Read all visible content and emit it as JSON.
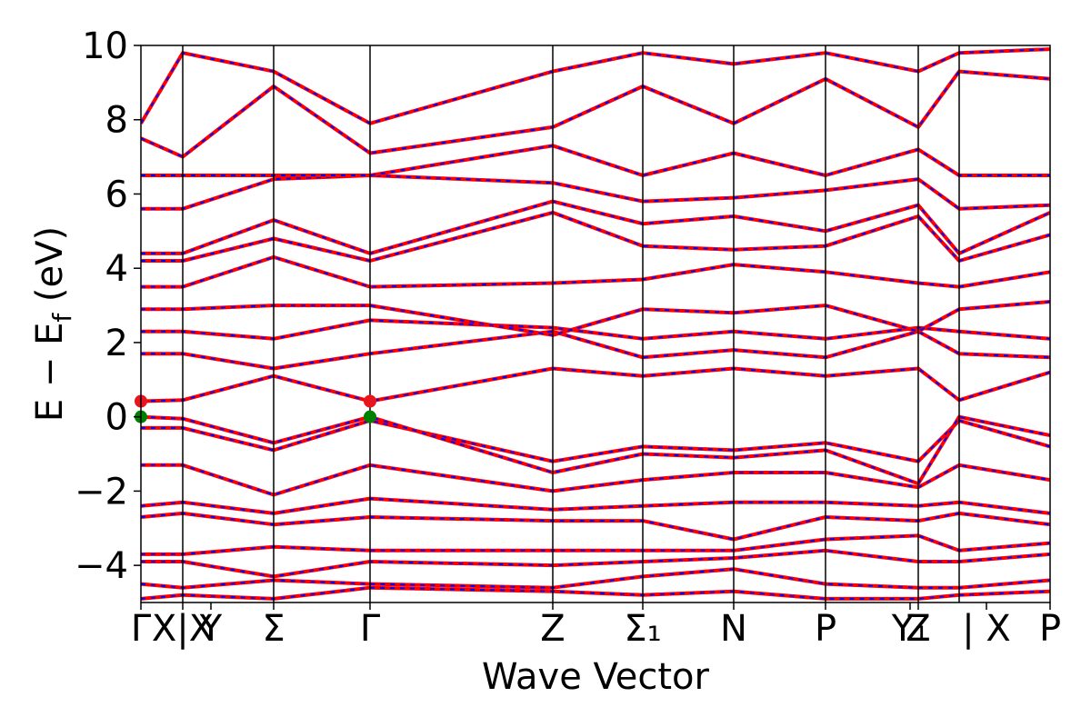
{
  "chart_data": {
    "type": "line",
    "title": "",
    "xlabel": "Wave Vector",
    "ylabel": "E − E_f (eV)",
    "ylabel_parts": {
      "main": "E − E",
      "sub": "f",
      "unit": " (eV)"
    },
    "ylim": [
      -5,
      10
    ],
    "yticks": [
      -4,
      -2,
      0,
      2,
      4,
      6,
      8,
      10
    ],
    "ytick_labels": [
      "−4",
      "−2",
      "0",
      "2",
      "4",
      "6",
      "8",
      "10"
    ],
    "xlim": [
      0,
      1
    ],
    "high_symmetry_points": [
      {
        "label": "Γ",
        "x": 0.0
      },
      {
        "label": "X|X",
        "x": 0.046
      },
      {
        "label": "Y",
        "x": 0.077
      },
      {
        "label": "Σ",
        "x": 0.146
      },
      {
        "label": "Γ",
        "x": 0.252
      },
      {
        "label": "Z",
        "x": 0.453
      },
      {
        "label": "Σ₁",
        "x": 0.552
      },
      {
        "label": "N",
        "x": 0.652
      },
      {
        "label": "P",
        "x": 0.753
      },
      {
        "label": "Y₁",
        "x": 0.846
      },
      {
        "label": "Z",
        "x": 0.855
      },
      {
        "label": "| X",
        "x": 0.93
      },
      {
        "label": "P",
        "x": 1.0
      }
    ],
    "vertical_lines_x": [
      0.046,
      0.146,
      0.252,
      0.453,
      0.552,
      0.652,
      0.753,
      0.855,
      0.9
    ],
    "series_style": {
      "primary_color": "#ff0000",
      "overlay_color": "#0000ff",
      "overlay_dash": "dashed"
    },
    "markers": [
      {
        "x": 0.0,
        "y": 0.0,
        "color": "#008000"
      },
      {
        "x": 0.0,
        "y": 0.42,
        "color": "#e8141e"
      },
      {
        "x": 0.252,
        "y": 0.0,
        "color": "#008000"
      },
      {
        "x": 0.252,
        "y": 0.42,
        "color": "#e8141e"
      }
    ],
    "bands": [
      {
        "x": [
          0,
          0.046,
          0.146,
          0.252,
          0.453,
          0.552,
          0.652,
          0.753,
          0.855,
          0.9,
          1.0
        ],
        "y": [
          -4.9,
          -4.8,
          -4.9,
          -4.6,
          -4.7,
          -4.8,
          -4.7,
          -4.9,
          -4.9,
          -4.8,
          -4.7
        ]
      },
      {
        "x": [
          0,
          0.046,
          0.146,
          0.252,
          0.453,
          0.552,
          0.652,
          0.753,
          0.855,
          0.9,
          1.0
        ],
        "y": [
          -4.5,
          -4.6,
          -4.4,
          -4.5,
          -4.6,
          -4.3,
          -4.1,
          -4.5,
          -4.6,
          -4.6,
          -4.4
        ]
      },
      {
        "x": [
          0,
          0.046,
          0.146,
          0.252,
          0.453,
          0.552,
          0.652,
          0.753,
          0.855,
          0.9,
          1.0
        ],
        "y": [
          -3.9,
          -3.9,
          -4.3,
          -3.9,
          -4.0,
          -3.9,
          -3.8,
          -3.6,
          -3.9,
          -3.9,
          -3.7
        ]
      },
      {
        "x": [
          0,
          0.046,
          0.146,
          0.252,
          0.453,
          0.552,
          0.652,
          0.753,
          0.855,
          0.9,
          1.0
        ],
        "y": [
          -3.7,
          -3.7,
          -3.5,
          -3.6,
          -3.6,
          -3.6,
          -3.6,
          -3.3,
          -3.2,
          -3.6,
          -3.4
        ]
      },
      {
        "x": [
          0,
          0.046,
          0.146,
          0.252,
          0.453,
          0.552,
          0.652,
          0.753,
          0.855,
          0.9,
          1.0
        ],
        "y": [
          -2.7,
          -2.6,
          -2.9,
          -2.7,
          -2.8,
          -2.8,
          -3.3,
          -2.7,
          -2.8,
          -2.6,
          -2.9
        ]
      },
      {
        "x": [
          0,
          0.046,
          0.146,
          0.252,
          0.453,
          0.552,
          0.652,
          0.753,
          0.855,
          0.9,
          1.0
        ],
        "y": [
          -2.4,
          -2.3,
          -2.6,
          -2.2,
          -2.5,
          -2.4,
          -2.3,
          -2.3,
          -2.4,
          -2.3,
          -2.6
        ]
      },
      {
        "x": [
          0,
          0.046,
          0.146,
          0.252,
          0.453,
          0.552,
          0.652,
          0.753,
          0.855,
          0.9,
          1.0
        ],
        "y": [
          -1.3,
          -1.3,
          -2.1,
          -1.3,
          -2.0,
          -1.7,
          -1.5,
          -1.5,
          -1.9,
          -1.3,
          -1.7
        ]
      },
      {
        "x": [
          0,
          0.046,
          0.146,
          0.252,
          0.453,
          0.552,
          0.652,
          0.753,
          0.855,
          0.9,
          1.0
        ],
        "y": [
          -0.3,
          -0.3,
          -0.9,
          -0.1,
          -1.2,
          -0.8,
          -0.9,
          -0.7,
          -1.2,
          -0.1,
          -0.8
        ]
      },
      {
        "x": [
          0,
          0.046,
          0.146,
          0.252,
          0.453,
          0.552,
          0.652,
          0.753,
          0.855,
          0.9,
          1.0
        ],
        "y": [
          0.0,
          -0.05,
          -0.7,
          0.0,
          -1.5,
          -1.0,
          -1.1,
          -0.9,
          -1.8,
          0.0,
          -0.5
        ]
      },
      {
        "x": [
          0,
          0.046,
          0.146,
          0.252,
          0.453,
          0.552,
          0.652,
          0.753,
          0.855,
          0.9,
          1.0
        ],
        "y": [
          0.42,
          0.45,
          1.1,
          0.42,
          1.3,
          1.1,
          1.3,
          1.1,
          1.3,
          0.45,
          1.2
        ]
      },
      {
        "x": [
          0,
          0.046,
          0.146,
          0.252,
          0.453,
          0.552,
          0.652,
          0.753,
          0.855,
          0.9,
          1.0
        ],
        "y": [
          1.7,
          1.7,
          1.3,
          1.7,
          2.3,
          1.6,
          1.8,
          1.6,
          2.3,
          1.7,
          1.6
        ]
      },
      {
        "x": [
          0,
          0.046,
          0.146,
          0.252,
          0.453,
          0.552,
          0.652,
          0.753,
          0.855,
          0.9,
          1.0
        ],
        "y": [
          2.3,
          2.3,
          2.1,
          2.6,
          2.4,
          2.1,
          2.3,
          2.1,
          2.4,
          2.3,
          2.1
        ]
      },
      {
        "x": [
          0,
          0.046,
          0.146,
          0.252,
          0.453,
          0.552,
          0.652,
          0.753,
          0.855,
          0.9,
          1.0
        ],
        "y": [
          2.9,
          2.9,
          3.0,
          3.0,
          2.2,
          2.9,
          2.8,
          3.0,
          2.3,
          2.9,
          3.1
        ]
      },
      {
        "x": [
          0,
          0.046,
          0.146,
          0.252,
          0.453,
          0.552,
          0.652,
          0.753,
          0.855,
          0.9,
          1.0
        ],
        "y": [
          3.5,
          3.5,
          4.3,
          3.5,
          3.6,
          3.7,
          4.1,
          3.9,
          3.6,
          3.5,
          3.9
        ]
      },
      {
        "x": [
          0,
          0.046,
          0.146,
          0.252,
          0.453,
          0.552,
          0.652,
          0.753,
          0.855,
          0.9,
          1.0
        ],
        "y": [
          4.2,
          4.2,
          4.8,
          4.2,
          5.5,
          4.6,
          4.5,
          4.6,
          5.4,
          4.2,
          4.9
        ]
      },
      {
        "x": [
          0,
          0.046,
          0.146,
          0.252,
          0.453,
          0.552,
          0.652,
          0.753,
          0.855,
          0.9,
          1.0
        ],
        "y": [
          4.4,
          4.4,
          5.3,
          4.4,
          5.8,
          5.2,
          5.4,
          5.0,
          5.7,
          4.4,
          5.5
        ]
      },
      {
        "x": [
          0,
          0.046,
          0.146,
          0.252,
          0.453,
          0.552,
          0.652,
          0.753,
          0.855,
          0.9,
          1.0
        ],
        "y": [
          5.6,
          5.6,
          6.4,
          6.5,
          6.3,
          5.8,
          5.9,
          6.1,
          6.4,
          5.6,
          5.7
        ]
      },
      {
        "x": [
          0,
          0.046,
          0.146,
          0.252,
          0.453,
          0.552,
          0.652,
          0.753,
          0.855,
          0.9,
          1.0
        ],
        "y": [
          6.5,
          6.5,
          6.5,
          6.5,
          7.3,
          6.5,
          7.1,
          6.5,
          7.2,
          6.5,
          6.5
        ]
      },
      {
        "x": [
          0,
          0.046,
          0.146,
          0.252,
          0.453,
          0.552,
          0.652,
          0.753,
          0.855,
          0.9,
          1.0
        ],
        "y": [
          7.5,
          7.0,
          8.9,
          7.1,
          7.8,
          8.9,
          7.9,
          9.1,
          7.8,
          9.3,
          9.1
        ]
      },
      {
        "x": [
          0,
          0.046,
          0.146,
          0.252,
          0.453,
          0.552,
          0.652,
          0.753,
          0.855,
          0.9,
          1.0
        ],
        "y": [
          7.9,
          9.8,
          9.3,
          7.9,
          9.3,
          9.8,
          9.5,
          9.8,
          9.3,
          9.8,
          9.9
        ]
      }
    ]
  }
}
